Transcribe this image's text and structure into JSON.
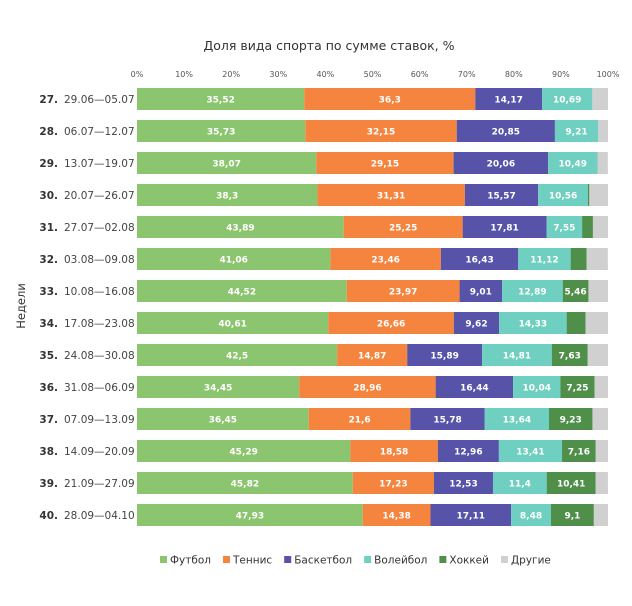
{
  "chart_data": {
    "type": "bar",
    "orientation": "horizontal",
    "stacked": true,
    "title": "Доля вида спорта по сумме ставок, %",
    "xlabel": "",
    "ylabel": "Недели",
    "xlim": [
      0,
      100
    ],
    "x_ticks": [
      "0%",
      "10%",
      "20%",
      "30%",
      "40%",
      "50%",
      "60%",
      "70%",
      "80%",
      "90%",
      "100%"
    ],
    "legend_position": "bottom",
    "grid": false,
    "categories": [
      {
        "num": "27.",
        "dates": "29.06—05.07"
      },
      {
        "num": "28.",
        "dates": "06.07—12.07"
      },
      {
        "num": "29.",
        "dates": "13.07—19.07"
      },
      {
        "num": "30.",
        "dates": "20.07—26.07"
      },
      {
        "num": "31.",
        "dates": "27.07—02.08"
      },
      {
        "num": "32.",
        "dates": "03.08—09.08"
      },
      {
        "num": "33.",
        "dates": "10.08—16.08"
      },
      {
        "num": "34.",
        "dates": "17.08—23.08"
      },
      {
        "num": "35.",
        "dates": "24.08—30.08"
      },
      {
        "num": "36.",
        "dates": "31.08—06.09"
      },
      {
        "num": "37.",
        "dates": "07.09—13.09"
      },
      {
        "num": "38.",
        "dates": "14.09—20.09"
      },
      {
        "num": "39.",
        "dates": "21.09—27.09"
      },
      {
        "num": "40.",
        "dates": "28.09—04.10"
      }
    ],
    "series": [
      {
        "name": "Футбол",
        "color": "#8cc56f",
        "values": [
          35.52,
          35.73,
          38.07,
          38.3,
          43.89,
          41.06,
          44.52,
          40.61,
          42.5,
          34.45,
          36.45,
          45.29,
          45.82,
          47.93
        ],
        "labels": [
          "35,52",
          "35,73",
          "38,07",
          "38,3",
          "43,89",
          "41,06",
          "44,52",
          "40,61",
          "42,5",
          "34,45",
          "36,45",
          "45,29",
          "45,82",
          "47,93"
        ]
      },
      {
        "name": "Теннис",
        "color": "#f4843e",
        "values": [
          36.3,
          32.15,
          29.15,
          31.31,
          25.25,
          23.46,
          23.97,
          26.66,
          14.87,
          28.96,
          21.6,
          18.58,
          17.23,
          14.38
        ],
        "labels": [
          "36,3",
          "32,15",
          "29,15",
          "31,31",
          "25,25",
          "23,46",
          "23,97",
          "26,66",
          "14,87",
          "28,96",
          "21,6",
          "18,58",
          "17,23",
          "14,38"
        ]
      },
      {
        "name": "Баскетбол",
        "color": "#5653a8",
        "values": [
          14.17,
          20.85,
          20.06,
          15.57,
          17.81,
          16.43,
          9.01,
          9.62,
          15.89,
          16.44,
          15.78,
          12.96,
          12.53,
          17.11
        ],
        "labels": [
          "14,17",
          "20,85",
          "20,06",
          "15,57",
          "17,81",
          "16,43",
          "9,01",
          "9,62",
          "15,89",
          "16,44",
          "15,78",
          "12,96",
          "12,53",
          "17,11"
        ]
      },
      {
        "name": "Волейбол",
        "color": "#6fcfc0",
        "values": [
          10.69,
          9.21,
          10.49,
          10.56,
          7.55,
          11.12,
          12.89,
          14.33,
          14.81,
          10.04,
          13.64,
          13.41,
          11.4,
          8.48
        ],
        "labels": [
          "10,69",
          "9,21",
          "10,49",
          "10,56",
          "7,55",
          "11,12",
          "12,89",
          "14,33",
          "14,81",
          "10,04",
          "13,64",
          "13,41",
          "11,4",
          "8,48"
        ]
      },
      {
        "name": "Хоккей",
        "color": "#4f8f4a",
        "values": [
          0.0,
          0.0,
          0.0,
          0.3,
          2.3,
          3.4,
          5.46,
          4.0,
          7.63,
          7.25,
          9.23,
          7.16,
          10.41,
          9.1
        ],
        "labels": [
          "",
          "",
          "",
          "",
          "",
          "",
          "5,46",
          "",
          "7,63",
          "7,25",
          "9,23",
          "7,16",
          "10,41",
          "9,1"
        ]
      },
      {
        "name": "Другие",
        "color": "#d0d0d0",
        "values": [
          3.8,
          2.4,
          2.2,
          4.0,
          3.2,
          4.5,
          4.2,
          4.8,
          4.6,
          5.3,
          3.3,
          2.6,
          2.6,
          3.0
        ],
        "labels": [
          "",
          "",
          "",
          "",
          "",
          "",
          "",
          "",
          "",
          "",
          "",
          "",
          "",
          ""
        ]
      }
    ]
  }
}
